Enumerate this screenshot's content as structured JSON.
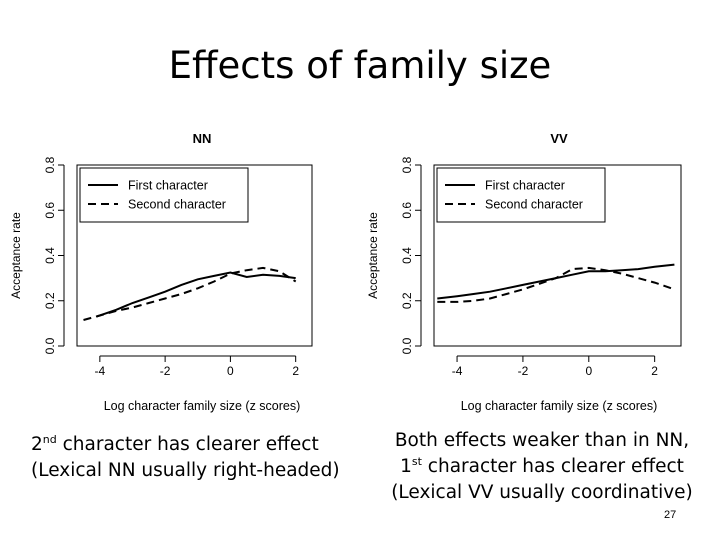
{
  "slide": {
    "title": "Effects of family size",
    "page_number": "27",
    "caption_left": {
      "line1_pre": "2",
      "line1_sup": "nd",
      "line1_post": " character has clearer effect",
      "line2": "(Lexical NN usually right-headed)"
    },
    "caption_right": {
      "line1": "Both effects weaker than in NN,",
      "line2_pre": "1",
      "line2_sup": "st",
      "line2_post": " character has clearer effect",
      "line3": "(Lexical VV usually coordinative)"
    }
  },
  "chart_data": [
    {
      "type": "line",
      "title": "NN",
      "xlabel": "Log character family size (z scores)",
      "ylabel": "Acceptance rate",
      "xlim": [
        -4.7,
        2.5
      ],
      "ylim": [
        0,
        0.8
      ],
      "xticks": [
        -4,
        -2,
        0,
        2
      ],
      "yticks": [
        0.0,
        0.2,
        0.4,
        0.6,
        0.8
      ],
      "xtick_labels": [
        "-4",
        "-2",
        "0",
        "2"
      ],
      "ytick_labels": [
        "0.0",
        "0.2",
        "0.4",
        "0.6",
        "0.8"
      ],
      "legend": [
        "First character",
        "Second character"
      ],
      "series": [
        {
          "name": "First character",
          "style": "solid",
          "x": [
            -4.1,
            -3.5,
            -3,
            -2.5,
            -2,
            -1.5,
            -1,
            -0.5,
            0,
            0.5,
            1,
            1.5,
            2
          ],
          "y": [
            0.13,
            0.16,
            0.19,
            0.215,
            0.24,
            0.27,
            0.295,
            0.31,
            0.325,
            0.305,
            0.315,
            0.31,
            0.3
          ]
        },
        {
          "name": "Second character",
          "style": "dashed",
          "x": [
            -4.5,
            -4,
            -3.5,
            -3,
            -2.5,
            -2,
            -1.5,
            -1,
            -0.5,
            0,
            0.5,
            1,
            1.5,
            2
          ],
          "y": [
            0.115,
            0.135,
            0.155,
            0.17,
            0.19,
            0.21,
            0.23,
            0.255,
            0.285,
            0.32,
            0.335,
            0.345,
            0.33,
            0.285
          ]
        }
      ]
    },
    {
      "type": "line",
      "title": "VV",
      "xlabel": "Log character family size (z scores)",
      "ylabel": "Acceptance rate",
      "xlim": [
        -4.7,
        2.8
      ],
      "ylim": [
        0,
        0.8
      ],
      "xticks": [
        -4,
        -2,
        0,
        2
      ],
      "yticks": [
        0.0,
        0.2,
        0.4,
        0.6,
        0.8
      ],
      "xtick_labels": [
        "-4",
        "-2",
        "0",
        "2"
      ],
      "ytick_labels": [
        "0.0",
        "0.2",
        "0.4",
        "0.6",
        "0.8"
      ],
      "legend": [
        "First character",
        "Second character"
      ],
      "series": [
        {
          "name": "First character",
          "style": "solid",
          "x": [
            -4.6,
            -4,
            -3.5,
            -3,
            -2.5,
            -2,
            -1.5,
            -1,
            -0.5,
            0,
            0.5,
            1,
            1.5,
            2,
            2.6
          ],
          "y": [
            0.21,
            0.22,
            0.23,
            0.24,
            0.255,
            0.27,
            0.285,
            0.3,
            0.315,
            0.33,
            0.33,
            0.335,
            0.34,
            0.35,
            0.36
          ]
        },
        {
          "name": "Second character",
          "style": "dashed",
          "x": [
            -4.6,
            -4,
            -3.5,
            -3,
            -2.5,
            -2,
            -1.5,
            -1,
            -0.5,
            0,
            0.5,
            1,
            1.5,
            2,
            2.6
          ],
          "y": [
            0.195,
            0.195,
            0.2,
            0.21,
            0.23,
            0.25,
            0.275,
            0.3,
            0.34,
            0.345,
            0.335,
            0.32,
            0.3,
            0.28,
            0.25
          ]
        }
      ]
    }
  ]
}
